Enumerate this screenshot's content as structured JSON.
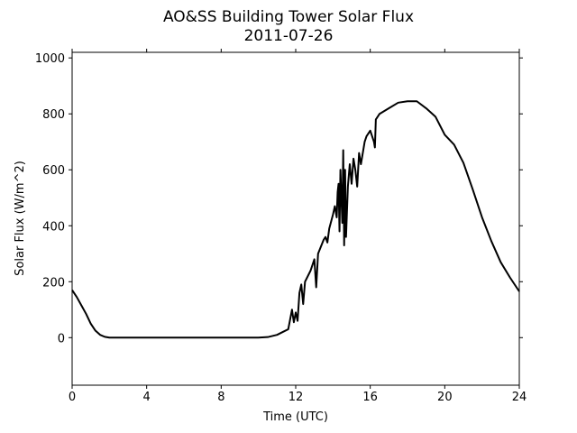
{
  "chart_data": {
    "type": "line",
    "title": "AO&SS Building Tower Solar Flux",
    "subtitle": "2011-07-26",
    "x_label": "Time (UTC)",
    "y_label": "Solar Flux (W/m^2)",
    "xlim": [
      0,
      24
    ],
    "xticks": [
      0,
      4,
      8,
      12,
      16,
      20,
      24
    ],
    "ylim": [
      -170,
      1020
    ],
    "yticks": [
      0,
      200,
      400,
      600,
      800,
      1000
    ],
    "x": [
      0,
      0.25,
      0.5,
      0.75,
      1.0,
      1.25,
      1.5,
      1.75,
      2.0,
      4.0,
      6.0,
      8.0,
      10.0,
      10.5,
      11.0,
      11.3,
      11.6,
      11.8,
      11.9,
      12.0,
      12.1,
      12.2,
      12.3,
      12.4,
      12.5,
      12.8,
      13.0,
      13.1,
      13.2,
      13.5,
      13.6,
      13.7,
      13.8,
      14.0,
      14.1,
      14.2,
      14.25,
      14.3,
      14.35,
      14.4,
      14.5,
      14.55,
      14.6,
      14.65,
      14.7,
      14.8,
      14.9,
      15.0,
      15.1,
      15.2,
      15.3,
      15.4,
      15.5,
      15.7,
      15.8,
      16.0,
      16.2,
      16.25,
      16.3,
      16.5,
      17.0,
      17.5,
      18.0,
      18.5,
      19.0,
      19.5,
      20.0,
      20.5,
      21.0,
      21.5,
      22.0,
      22.5,
      23.0,
      23.5,
      24.0
    ],
    "series": [
      {
        "name": "Solar Flux",
        "color": "#000000",
        "values": [
          170,
          145,
          115,
          85,
          50,
          25,
          10,
          3,
          0,
          0,
          0,
          0,
          0,
          2,
          10,
          20,
          30,
          100,
          55,
          90,
          60,
          160,
          190,
          120,
          200,
          240,
          280,
          180,
          300,
          350,
          360,
          340,
          390,
          440,
          470,
          430,
          520,
          550,
          380,
          600,
          410,
          670,
          330,
          600,
          360,
          540,
          620,
          550,
          640,
          600,
          540,
          660,
          620,
          700,
          720,
          740,
          700,
          680,
          780,
          800,
          820,
          840,
          845,
          845,
          820,
          790,
          725,
          690,
          625,
          530,
          430,
          345,
          270,
          215,
          165
        ]
      }
    ]
  }
}
